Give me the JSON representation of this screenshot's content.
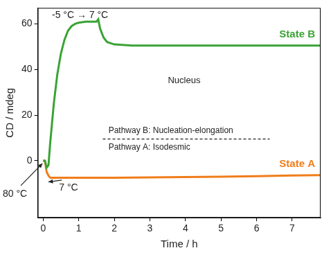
{
  "chart_data": {
    "type": "line",
    "x_label": "Time / h",
    "y_label": "CD / mdeg",
    "x": [
      0,
      0.05,
      0.1,
      0.15,
      0.2,
      0.3,
      0.4,
      0.5,
      0.6,
      0.7,
      0.8,
      0.9,
      1.0,
      1.2,
      1.4,
      1.5,
      1.55,
      1.6,
      1.7,
      1.8,
      2.0,
      2.5,
      3,
      4,
      5,
      6,
      7,
      7.8
    ],
    "series": [
      {
        "name": "State B",
        "color": "#3aa335",
        "values": [
          0,
          0,
          -3,
          -2,
          8,
          25,
          38,
          47,
          53,
          57,
          59,
          60,
          60.5,
          61,
          61,
          61,
          62,
          58,
          54,
          52,
          51,
          50.5,
          50.5,
          50.5,
          50.5,
          50.5,
          50.5,
          50.5
        ]
      },
      {
        "name": "State A",
        "color": "#f07d1a",
        "values": [
          0,
          0,
          -5,
          -6.5,
          -7.5,
          -7.5,
          -7.5,
          -7.5,
          -7.5,
          -7.5,
          -7.5,
          -7.5,
          -7.5,
          -7.5,
          -7.5,
          -7.5,
          -7.5,
          -7.5,
          -7.5,
          -7.5,
          -7.5,
          -7.4,
          -7.3,
          -7.2,
          -7,
          -6.8,
          -6.5,
          -6.3
        ]
      }
    ],
    "xlim": [
      -0.15,
      7.8
    ],
    "xticks": [
      0,
      1,
      2,
      3,
      4,
      5,
      6,
      7
    ],
    "ylim": [
      -25,
      67
    ],
    "yticks": [
      0,
      20,
      40,
      60
    ],
    "grid": false,
    "annotations": [
      "-5 °C → 7 °C",
      "80 °C",
      "7 °C",
      "Nucleus",
      "Pathway B: Nucleation-elongation",
      "Pathway A: Isodesmic"
    ]
  }
}
